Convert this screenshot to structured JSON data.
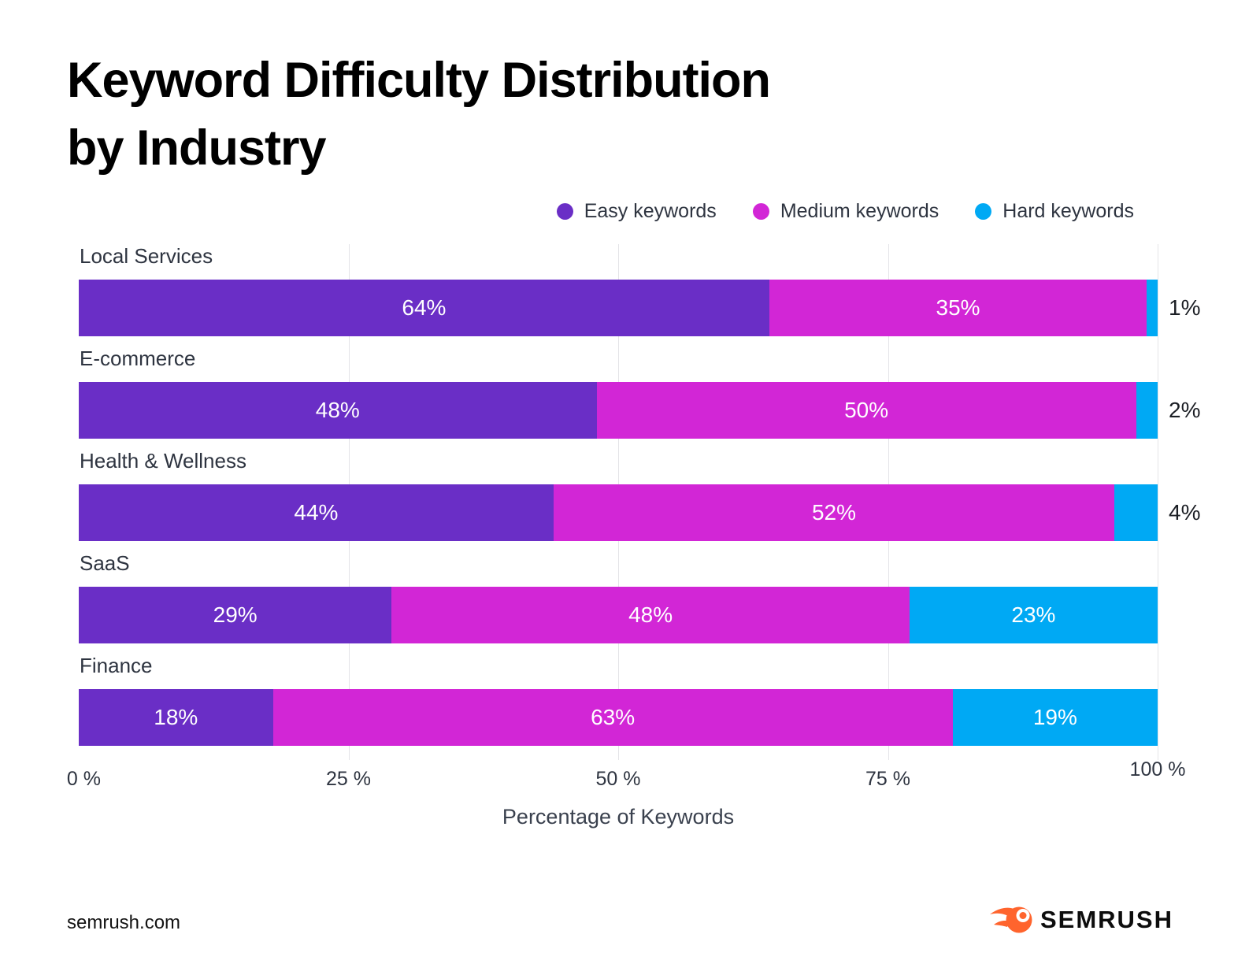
{
  "title": {
    "line1": "Keyword Difficulty Distribution",
    "line2": "by Industry"
  },
  "legend": {
    "items": [
      {
        "label": "Easy keywords",
        "color": "#6A2EC6"
      },
      {
        "label": "Medium keywords",
        "color": "#D226D6"
      },
      {
        "label": "Hard keywords",
        "color": "#00A9F4"
      }
    ]
  },
  "chart_data": {
    "type": "bar",
    "orientation": "horizontal",
    "stacked": true,
    "title": "Keyword Difficulty Distribution by Industry",
    "categories": [
      "Local Services",
      "E-commerce",
      "Health & Wellness",
      "SaaS",
      "Finance"
    ],
    "series": [
      {
        "name": "Easy keywords",
        "color": "#6A2EC6",
        "values": [
          64,
          48,
          44,
          29,
          18
        ]
      },
      {
        "name": "Medium keywords",
        "color": "#D226D6",
        "values": [
          35,
          50,
          52,
          48,
          63
        ]
      },
      {
        "name": "Hard keywords",
        "color": "#00A9F4",
        "values": [
          1,
          2,
          4,
          23,
          19
        ]
      }
    ],
    "value_suffix": "%",
    "inside_label_min": 10,
    "xlabel": "Percentage of Keywords",
    "xlim": [
      0,
      100
    ],
    "x_ticks": [
      "0 %",
      "25 %",
      "50 %",
      "75 %",
      "100 %"
    ],
    "x_tick_positions": [
      0,
      25,
      50,
      75,
      100
    ],
    "gridlines": [
      25,
      50,
      75,
      100
    ],
    "grid": "vertical",
    "legend_position": "top-right"
  },
  "footer": {
    "site": "semrush.com",
    "brand": "SEMRUSH"
  }
}
